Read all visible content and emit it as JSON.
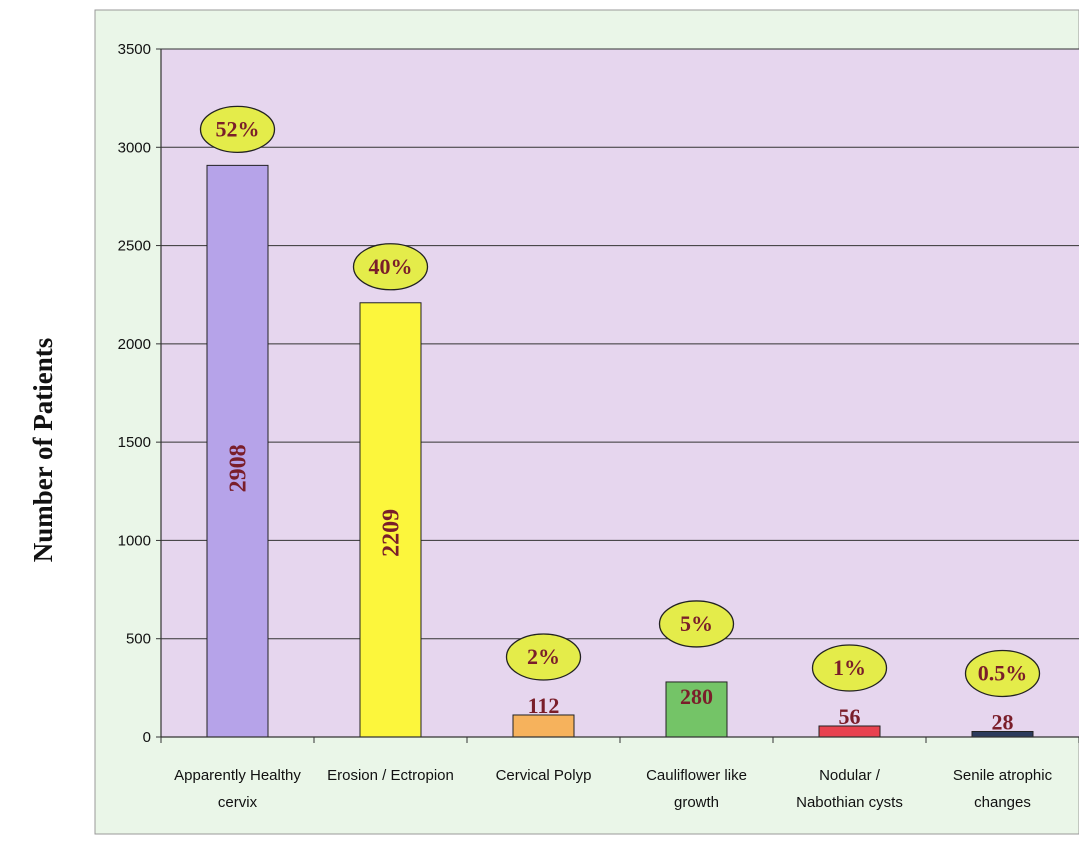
{
  "chart_data": {
    "type": "bar",
    "ylabel": "Number of Patients",
    "ylim": [
      0,
      3500
    ],
    "yticks": [
      0,
      500,
      1000,
      1500,
      2000,
      2500,
      3000,
      3500
    ],
    "grid": true,
    "categories": [
      [
        "Apparently Healthy",
        "cervix"
      ],
      [
        "Erosion / Ectropion"
      ],
      [
        "Cervical Polyp"
      ],
      [
        "Cauliflower like",
        "growth"
      ],
      [
        "Nodular /",
        "Nabothian cysts"
      ],
      [
        "Senile atrophic",
        "changes"
      ]
    ],
    "values": [
      2908,
      2209,
      112,
      280,
      56,
      28
    ],
    "value_labels": [
      "2908",
      "2209",
      "112",
      "280",
      "56",
      "28"
    ],
    "percent_labels": [
      "52%",
      "40%",
      "2%",
      "5%",
      "1%",
      "0.5%"
    ],
    "bar_colors": [
      "#b6a3e9",
      "#fcf63c",
      "#f6b25c",
      "#74c467",
      "#e8424f",
      "#2c3a5c"
    ]
  },
  "colors": {
    "plot_background": "#e6d6ee",
    "outer_background": "#eaf6e8",
    "percent_bubble": "#e4ec4a",
    "label_text": "#7a1e2a"
  }
}
